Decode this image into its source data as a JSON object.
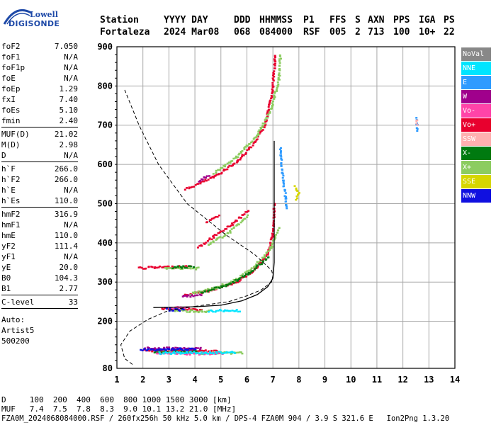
{
  "logo": {
    "line1": "Lowell",
    "line2": "DIGISONDE",
    "color": "#1f4aa8"
  },
  "header": {
    "columns": [
      {
        "label": "Station",
        "value": "Fortaleza"
      },
      {
        "label": "YYYY DAY",
        "value": "2024 Mar08"
      },
      {
        "label": "DDD",
        "value": "068"
      },
      {
        "label": "HHMMSS",
        "value": "084000"
      },
      {
        "label": "P1",
        "value": "RSF"
      },
      {
        "label": "FFS",
        "value": "005"
      },
      {
        "label": "S",
        "value": "2"
      },
      {
        "label": "AXN",
        "value": "713"
      },
      {
        "label": "PPS",
        "value": "100"
      },
      {
        "label": "IGA",
        "value": "10+"
      },
      {
        "label": "PS",
        "value": "22"
      }
    ]
  },
  "parameters": {
    "group1": [
      {
        "name": "foF2",
        "value": "7.050"
      },
      {
        "name": "foF1",
        "value": "N/A"
      },
      {
        "name": "foF1p",
        "value": "N/A"
      },
      {
        "name": "foE",
        "value": "N/A"
      },
      {
        "name": "foEp",
        "value": "1.29"
      },
      {
        "name": "fxI",
        "value": "7.40"
      },
      {
        "name": "foEs",
        "value": "5.10"
      },
      {
        "name": "fmin",
        "value": "2.40"
      }
    ],
    "group2": [
      {
        "name": "MUF(D)",
        "value": "21.02"
      },
      {
        "name": "M(D)",
        "value": "2.98"
      },
      {
        "name": "D",
        "value": "N/A"
      }
    ],
    "group3": [
      {
        "name": "h`F",
        "value": "266.0"
      },
      {
        "name": "h`F2",
        "value": "266.0"
      },
      {
        "name": "h`E",
        "value": "N/A"
      },
      {
        "name": "h`Es",
        "value": "110.0"
      }
    ],
    "group4": [
      {
        "name": "hmF2",
        "value": "316.9"
      },
      {
        "name": "hmF1",
        "value": "N/A"
      },
      {
        "name": "hmE",
        "value": "110.0"
      },
      {
        "name": "yF2",
        "value": "111.4"
      },
      {
        "name": "yF1",
        "value": "N/A"
      },
      {
        "name": "yE",
        "value": "20.0"
      },
      {
        "name": "B0",
        "value": "104.3"
      },
      {
        "name": "B1",
        "value": "2.77"
      }
    ],
    "group5": [
      {
        "name": "C-level",
        "value": "33"
      }
    ],
    "autoscaling": [
      "Auto:",
      "Artist5",
      "500200"
    ]
  },
  "legend": [
    {
      "label": "NoVal",
      "bg": "#888888",
      "fg": "#ffffff"
    },
    {
      "label": "NNE",
      "bg": "#00e5ff",
      "fg": "#ffffff"
    },
    {
      "label": "E",
      "bg": "#2e9bff",
      "fg": "#ffffff"
    },
    {
      "label": "W",
      "bg": "#a0008c",
      "fg": "#ffffff"
    },
    {
      "label": "Vo-",
      "bg": "#ff44a8",
      "fg": "#ffffff"
    },
    {
      "label": "Vo+",
      "bg": "#e8002e",
      "fg": "#ffffff"
    },
    {
      "label": "SSW",
      "bg": "#ffb0b0",
      "fg": "#ffffff"
    },
    {
      "label": "X-",
      "bg": "#007a10",
      "fg": "#ffffff"
    },
    {
      "label": "X+",
      "bg": "#8ccc60",
      "fg": "#ffffff"
    },
    {
      "label": "SSE",
      "bg": "#d6d600",
      "fg": "#ffffff"
    },
    {
      "label": "NNW",
      "bg": "#1010e0",
      "fg": "#ffffff"
    }
  ],
  "footer": {
    "line1": "D     100  200  400  600  800 1000 1500 3000 [km]",
    "line2": "MUF   7.4  7.5  7.8  8.3  9.0 10.1 13.2 21.0 [MHz]",
    "line3": "FZA0M_2024068084000.RSF / 260fx256h 50 kHz 5.0 km / DPS-4 FZA0M 904 / 3.9 S 321.6 E   Ion2Png 1.3.20"
  },
  "chart_data": {
    "type": "scatter",
    "xlim": [
      1,
      14
    ],
    "ylim": [
      80,
      900
    ],
    "xticks": [
      "1",
      "2",
      "3",
      "4",
      "5",
      "6",
      "7",
      "8",
      "9",
      "10",
      "11",
      "12",
      "13",
      "14"
    ],
    "yticks": [
      "80",
      "200",
      "300",
      "400",
      "500",
      "600",
      "700",
      "800",
      "900"
    ],
    "ytick_values": [
      80,
      200,
      300,
      400,
      500,
      600,
      700,
      800,
      900
    ],
    "grid": true,
    "series": [
      {
        "name": "Vo+",
        "color": "#e8002e",
        "segments": [
          [
            [
              3.55,
              268
            ],
            [
              4.5,
              280
            ],
            [
              5.5,
              300
            ],
            [
              6.2,
              330
            ],
            [
              6.75,
              370
            ],
            [
              6.95,
              420
            ],
            [
              7.02,
              500
            ]
          ],
          [
            [
              3.6,
              538
            ],
            [
              4.7,
              570
            ],
            [
              5.6,
              610
            ],
            [
              6.3,
              660
            ],
            [
              6.7,
              710
            ],
            [
              6.95,
              790
            ],
            [
              7.05,
              880
            ]
          ],
          [
            [
              4.1,
              390
            ],
            [
              4.7,
              418
            ],
            [
              5.4,
              450
            ],
            [
              6.0,
              485
            ]
          ],
          [
            [
              4.4,
              455
            ],
            [
              4.9,
              470
            ]
          ],
          [
            [
              2.0,
              128
            ],
            [
              3.0,
              127
            ],
            [
              4.0,
              126
            ],
            [
              4.8,
              125
            ]
          ],
          [
            [
              2.7,
              235
            ],
            [
              3.6,
              233
            ],
            [
              4.2,
              231
            ]
          ],
          [
            [
              1.8,
              338
            ],
            [
              2.8,
              340
            ],
            [
              3.8,
              342
            ]
          ]
        ]
      },
      {
        "name": "X+",
        "color": "#8ccc60",
        "segments": [
          [
            [
              3.8,
              272
            ],
            [
              4.8,
              288
            ],
            [
              5.6,
              310
            ],
            [
              6.3,
              345
            ],
            [
              6.9,
              390
            ],
            [
              7.18,
              440
            ]
          ],
          [
            [
              4.7,
              580
            ],
            [
              5.6,
              622
            ],
            [
              6.4,
              680
            ],
            [
              6.9,
              745
            ],
            [
              7.2,
              820
            ],
            [
              7.25,
              880
            ]
          ],
          [
            [
              4.5,
              398
            ],
            [
              5.3,
              430
            ],
            [
              6.0,
              470
            ]
          ],
          [
            [
              2.5,
              123
            ],
            [
              3.5,
              122
            ],
            [
              4.8,
              121
            ],
            [
              5.8,
              122
            ]
          ],
          [
            [
              3.0,
              230
            ],
            [
              3.8,
              228
            ],
            [
              4.5,
              227
            ]
          ],
          [
            [
              2.8,
              336
            ],
            [
              3.5,
              337
            ],
            [
              4.1,
              337
            ]
          ]
        ]
      },
      {
        "name": "X-",
        "color": "#007a10",
        "segments": [
          [
            [
              4.2,
              276
            ],
            [
              5.2,
              294
            ],
            [
              6.0,
              322
            ],
            [
              6.8,
              365
            ]
          ],
          [
            [
              2.4,
              125
            ],
            [
              3.2,
              124
            ],
            [
              4.0,
              124
            ]
          ],
          [
            [
              3.1,
              340
            ],
            [
              3.9,
              341
            ]
          ]
        ]
      },
      {
        "name": "W",
        "color": "#a0008c",
        "segments": [
          [
            [
              2.0,
              133
            ],
            [
              2.8,
              133
            ],
            [
              3.6,
              132
            ],
            [
              4.2,
              132
            ]
          ],
          [
            [
              3.5,
              265
            ],
            [
              4.2,
              270
            ]
          ],
          [
            [
              4.1,
              560
            ],
            [
              4.5,
              574
            ]
          ]
        ]
      },
      {
        "name": "Vo-",
        "color": "#ff44a8",
        "segments": [
          [
            [
              2.5,
              120
            ],
            [
              3.3,
              120
            ],
            [
              4.1,
              119
            ],
            [
              5.0,
              120
            ]
          ],
          [
            [
              3.0,
              236
            ],
            [
              3.7,
              236
            ]
          ]
        ]
      },
      {
        "name": "NNW",
        "color": "#1010e0",
        "segments": [
          [
            [
              1.9,
              130
            ],
            [
              2.6,
              130
            ],
            [
              3.4,
              131
            ],
            [
              4.0,
              131
            ]
          ],
          [
            [
              2.9,
              232
            ],
            [
              3.5,
              231
            ]
          ]
        ]
      },
      {
        "name": "NNE",
        "color": "#00e5ff",
        "segments": [
          [
            [
              2.6,
              121
            ],
            [
              3.4,
              122
            ],
            [
              4.4,
              122
            ],
            [
              5.5,
              123
            ]
          ],
          [
            [
              4.5,
              229
            ],
            [
              5.1,
              229
            ],
            [
              5.7,
              229
            ]
          ]
        ]
      },
      {
        "name": "E",
        "color": "#2e9bff",
        "segments": [
          [
            [
              7.25,
              645
            ],
            [
              7.3,
              600
            ],
            [
              7.35,
              560
            ],
            [
              7.45,
              520
            ],
            [
              7.5,
              490
            ]
          ],
          [
            [
              12.5,
              690
            ],
            [
              12.5,
              720
            ]
          ]
        ]
      },
      {
        "name": "SSE",
        "color": "#d6d600",
        "segments": [
          [
            [
              7.8,
              545
            ],
            [
              7.95,
              530
            ],
            [
              7.85,
              512
            ]
          ]
        ]
      },
      {
        "name": "SSW",
        "color": "#ffb0b0",
        "segments": [
          [
            [
              12.5,
              705
            ],
            [
              12.5,
              715
            ]
          ]
        ]
      }
    ],
    "profile": [
      [
        4.0,
        238
      ],
      [
        5.3,
        250
      ],
      [
        6.0,
        265
      ],
      [
        6.55,
        280
      ],
      [
        6.95,
        300
      ],
      [
        7.0,
        317
      ],
      [
        6.95,
        330
      ],
      [
        6.3,
        370
      ],
      [
        5.2,
        420
      ],
      [
        3.7,
        500
      ],
      [
        2.6,
        600
      ],
      [
        1.85,
        700
      ],
      [
        1.3,
        790
      ]
    ],
    "profile_solid": [
      [
        2.4,
        235
      ],
      [
        4.0,
        237
      ],
      [
        5.0,
        241
      ],
      [
        5.8,
        252
      ],
      [
        6.4,
        268
      ],
      [
        6.8,
        288
      ],
      [
        7.0,
        310
      ],
      [
        7.05,
        350
      ],
      [
        7.05,
        420
      ],
      [
        7.05,
        500
      ],
      [
        7.05,
        580
      ],
      [
        7.05,
        660
      ]
    ],
    "profile_bottom": [
      [
        4.0,
        238
      ],
      [
        3.0,
        228
      ],
      [
        2.2,
        205
      ],
      [
        1.5,
        175
      ],
      [
        1.15,
        140
      ],
      [
        1.3,
        105
      ],
      [
        1.6,
        90
      ]
    ]
  }
}
